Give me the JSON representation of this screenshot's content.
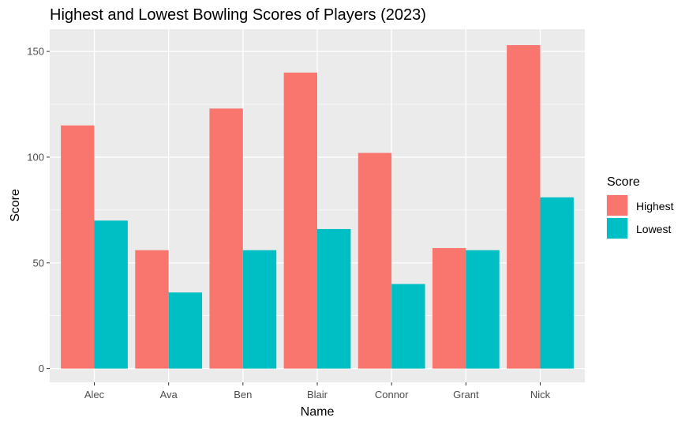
{
  "chart_data": {
    "type": "bar",
    "title": "Highest and Lowest Bowling Scores of Players (2023)",
    "xlabel": "Name",
    "ylabel": "Score",
    "categories": [
      "Alec",
      "Ava",
      "Ben",
      "Blair",
      "Connor",
      "Grant",
      "Nick"
    ],
    "series": [
      {
        "name": "Highest",
        "color": "#F8766D",
        "values": [
          115,
          56,
          123,
          140,
          102,
          57,
          153
        ]
      },
      {
        "name": "Lowest",
        "color": "#00BFC4",
        "values": [
          70,
          36,
          56,
          66,
          40,
          56,
          81
        ]
      }
    ],
    "ylim": [
      -6.5,
      160.5
    ],
    "yticks": [
      0,
      50,
      100,
      150
    ],
    "grid": true,
    "panel_background": "#EBEBEB",
    "legend": {
      "title": "Score",
      "position": "right"
    }
  }
}
